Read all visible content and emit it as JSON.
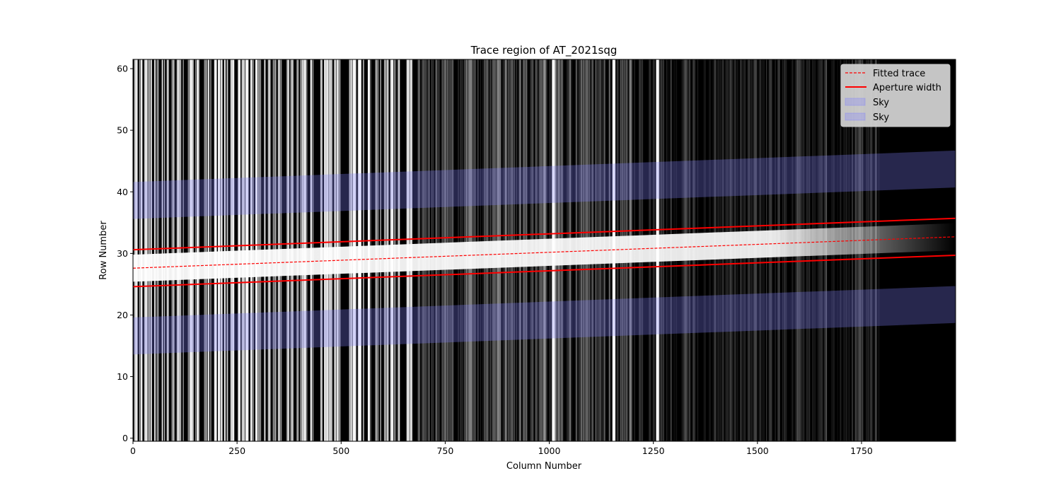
{
  "chart_data": {
    "type": "line",
    "title": "Trace region of AT_2021sqg",
    "xlabel": "Column Number",
    "ylabel": "Row Number",
    "xlim": [
      0,
      1976
    ],
    "ylim": [
      -0.5,
      61.5
    ],
    "xticks": [
      0,
      250,
      500,
      750,
      1000,
      1250,
      1500,
      1750
    ],
    "yticks": [
      0,
      10,
      20,
      30,
      40,
      50,
      60
    ],
    "background": "grayscale 2D spectrum image (bright emission lines at columns ~1010, ~1155, ~1260)",
    "legend_position": "upper right",
    "series": [
      {
        "name": "Fitted trace",
        "style": "dashed",
        "color": "#ff0000",
        "x": [
          0,
          1976
        ],
        "y": [
          27.6,
          32.7
        ]
      },
      {
        "name": "Aperture width",
        "style": "solid",
        "color": "#ff0000",
        "x": [
          0,
          1976
        ],
        "y": [
          30.6,
          35.7
        ]
      },
      {
        "name": "",
        "style": "solid",
        "color": "#ff0000",
        "x": [
          0,
          1976
        ],
        "y": [
          24.6,
          29.7
        ]
      }
    ],
    "bands": [
      {
        "name": "Sky",
        "color": "#8080ff",
        "x": [
          0,
          1976
        ],
        "y_low": [
          35.6,
          40.7
        ],
        "y_high": [
          41.6,
          46.7
        ]
      },
      {
        "name": "Sky",
        "color": "#8080ff",
        "x": [
          0,
          1976
        ],
        "y_low": [
          13.6,
          18.7
        ],
        "y_high": [
          19.6,
          24.7
        ]
      }
    ]
  }
}
